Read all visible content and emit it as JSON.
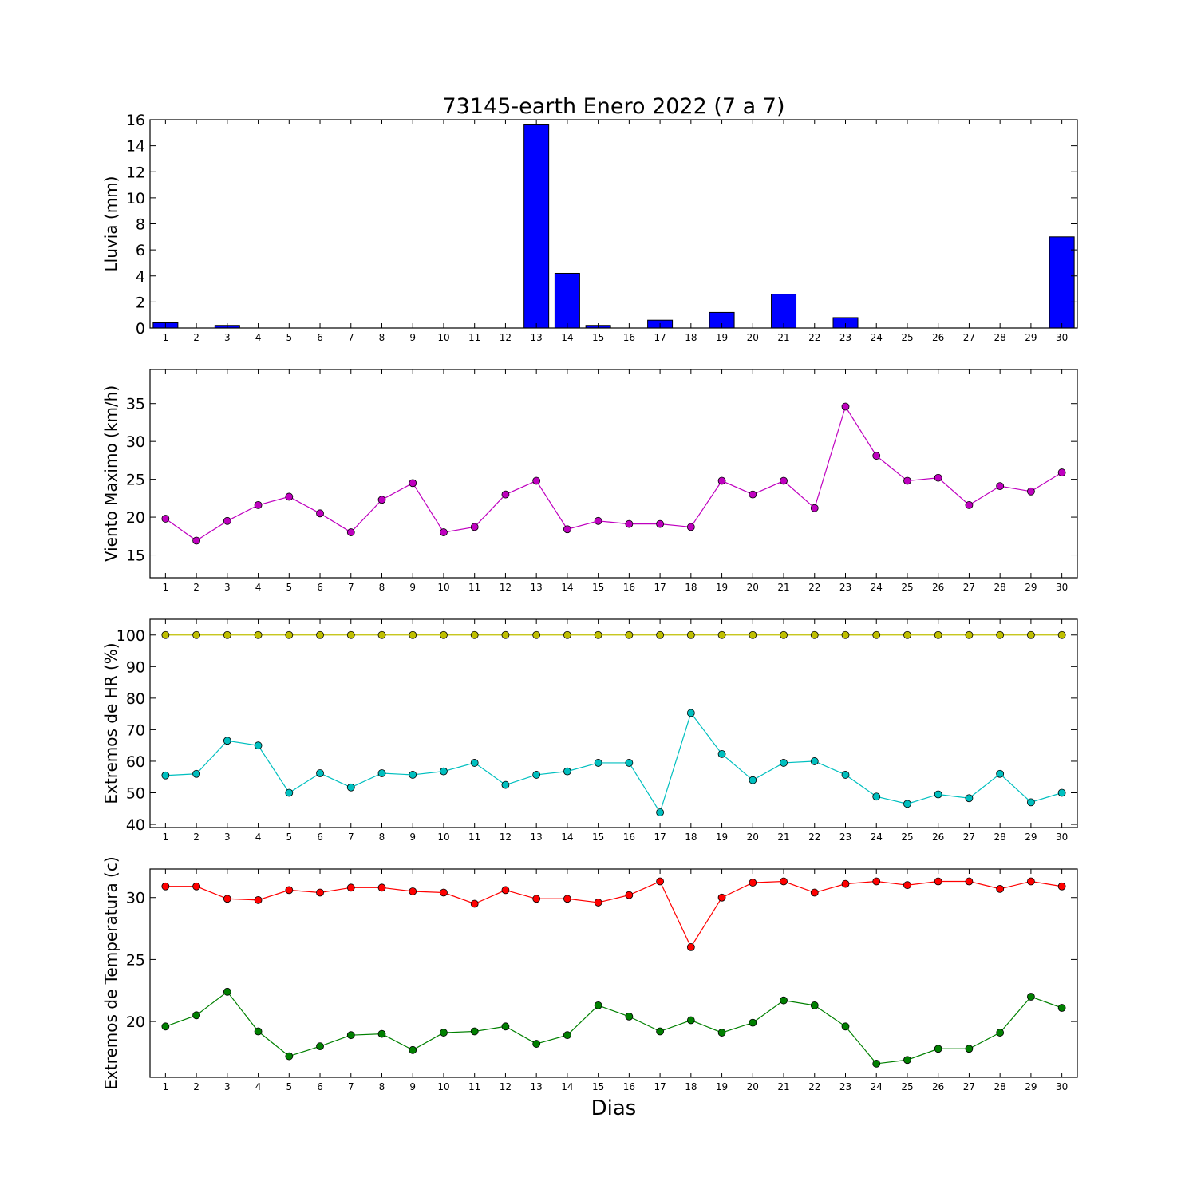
{
  "title": "73145-earth Enero 2022  (7 a 7)",
  "xlabel": "Dias",
  "chart_data": [
    {
      "type": "bar",
      "ylabel": "Lluvia (mm)",
      "ylim": [
        0,
        16
      ],
      "yticks": [
        0,
        2,
        4,
        6,
        8,
        10,
        12,
        14,
        16
      ],
      "x": [
        1,
        2,
        3,
        4,
        5,
        6,
        7,
        8,
        9,
        10,
        11,
        12,
        13,
        14,
        15,
        16,
        17,
        18,
        19,
        20,
        21,
        22,
        23,
        24,
        25,
        26,
        27,
        28,
        29,
        30
      ],
      "values": [
        0.4,
        0,
        0.2,
        0,
        0,
        0,
        0,
        0,
        0,
        0,
        0,
        0,
        15.6,
        4.2,
        0.2,
        0,
        0.6,
        0,
        1.2,
        0,
        2.6,
        0,
        0.8,
        0,
        0,
        0,
        0,
        0,
        0,
        7.0
      ],
      "color": "#0000ff"
    },
    {
      "type": "line",
      "ylabel": "Viento Maximo (km/h)",
      "ylim": [
        12,
        39.5
      ],
      "yticks": [
        15,
        20,
        25,
        30,
        35
      ],
      "x": [
        1,
        2,
        3,
        4,
        5,
        6,
        7,
        8,
        9,
        10,
        11,
        12,
        13,
        14,
        15,
        16,
        17,
        18,
        19,
        20,
        21,
        22,
        23,
        24,
        25,
        26,
        27,
        28,
        29,
        30
      ],
      "series": [
        {
          "values": [
            19.8,
            16.9,
            19.5,
            21.6,
            22.7,
            20.5,
            18.0,
            22.3,
            24.5,
            18.0,
            18.7,
            23.0,
            24.8,
            18.4,
            19.5,
            19.1,
            19.1,
            18.7,
            24.8,
            23.0,
            24.8,
            21.2,
            34.6,
            28.1,
            24.8,
            25.2,
            21.6,
            24.1,
            23.4,
            25.9
          ],
          "color": "#bf00bf"
        }
      ]
    },
    {
      "type": "line",
      "ylabel": "Extremos de HR (%)",
      "ylim": [
        39,
        105
      ],
      "yticks": [
        40,
        50,
        60,
        70,
        80,
        90,
        100
      ],
      "x": [
        1,
        2,
        3,
        4,
        5,
        6,
        7,
        8,
        9,
        10,
        11,
        12,
        13,
        14,
        15,
        16,
        17,
        18,
        19,
        20,
        21,
        22,
        23,
        24,
        25,
        26,
        27,
        28,
        29,
        30
      ],
      "series": [
        {
          "values": [
            100,
            100,
            100,
            100,
            100,
            100,
            100,
            100,
            100,
            100,
            100,
            100,
            100,
            100,
            100,
            100,
            100,
            100,
            100,
            100,
            100,
            100,
            100,
            100,
            100,
            100,
            100,
            100,
            100,
            100
          ],
          "color": "#bfbf00"
        },
        {
          "values": [
            55.5,
            56,
            66.5,
            65,
            50,
            56.2,
            51.7,
            56.2,
            55.7,
            56.8,
            59.5,
            52.5,
            55.7,
            56.8,
            59.5,
            59.5,
            43.8,
            75.3,
            62.3,
            54,
            59.5,
            60,
            55.7,
            48.8,
            46.5,
            49.5,
            48.3,
            56,
            47,
            50
          ],
          "color": "#00bfbf"
        }
      ]
    },
    {
      "type": "line",
      "ylabel": "Extremos de Temperatura (c)",
      "ylim": [
        15.5,
        32.3
      ],
      "yticks": [
        20,
        25,
        30
      ],
      "x": [
        1,
        2,
        3,
        4,
        5,
        6,
        7,
        8,
        9,
        10,
        11,
        12,
        13,
        14,
        15,
        16,
        17,
        18,
        19,
        20,
        21,
        22,
        23,
        24,
        25,
        26,
        27,
        28,
        29,
        30
      ],
      "series": [
        {
          "values": [
            30.9,
            30.9,
            29.9,
            29.8,
            30.6,
            30.4,
            30.8,
            30.8,
            30.5,
            30.4,
            29.5,
            30.6,
            29.9,
            29.9,
            29.6,
            30.2,
            31.3,
            26.0,
            30.0,
            31.2,
            31.3,
            30.4,
            31.1,
            31.3,
            31.0,
            31.3,
            31.3,
            30.7,
            31.3,
            30.9
          ],
          "color": "#ff0000"
        },
        {
          "values": [
            19.6,
            20.5,
            22.4,
            19.2,
            17.2,
            18.0,
            18.9,
            19.0,
            17.7,
            19.1,
            19.2,
            19.6,
            18.2,
            18.9,
            21.3,
            20.4,
            19.2,
            20.1,
            19.1,
            19.9,
            21.7,
            21.3,
            19.6,
            16.6,
            16.9,
            17.8,
            17.8,
            19.1,
            22.0,
            21.1
          ],
          "color": "#008000"
        }
      ]
    }
  ]
}
